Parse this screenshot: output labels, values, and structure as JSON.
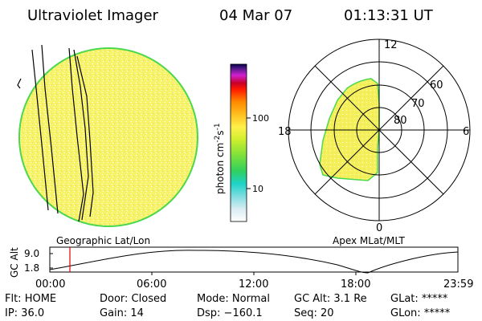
{
  "header": {
    "instrument": "Ultraviolet Imager",
    "date": "04 Mar 07",
    "time": "01:13:31 UT"
  },
  "geo_panel": {
    "caption": "Geographic Lat/Lon"
  },
  "polar_panel": {
    "caption": "Apex MLat/MLT",
    "mlt_labels": [
      "12",
      "18",
      "6",
      "0"
    ],
    "mlat_labels": [
      "60",
      "70",
      "80"
    ]
  },
  "colorbar": {
    "unit": "photon cm",
    "unit_exp1": "-2",
    "unit_mid": "s",
    "unit_exp2": "-1",
    "tick_labels": [
      "100",
      "10"
    ]
  },
  "altitude_strip": {
    "axis_label": "GC Alt",
    "y_ticks": [
      "9.0",
      "1.8"
    ],
    "x_ticks": [
      "00:00",
      "06:00",
      "12:00",
      "18:00",
      "23:59"
    ]
  },
  "status": {
    "row1": [
      "Flt: HOME",
      "Door: Closed",
      "Mode: Normal",
      "GC Alt: 3.1 Re",
      "GLat: *****"
    ],
    "row2": [
      "IP: 36.0",
      "Gain: 14",
      "Dsp: −160.1",
      "Seq: 20",
      "GLon: *****"
    ]
  },
  "colors": {
    "disk_fill": "#f6f26a",
    "disk_edge": "#4cd84c",
    "marker": "#e00000"
  }
}
